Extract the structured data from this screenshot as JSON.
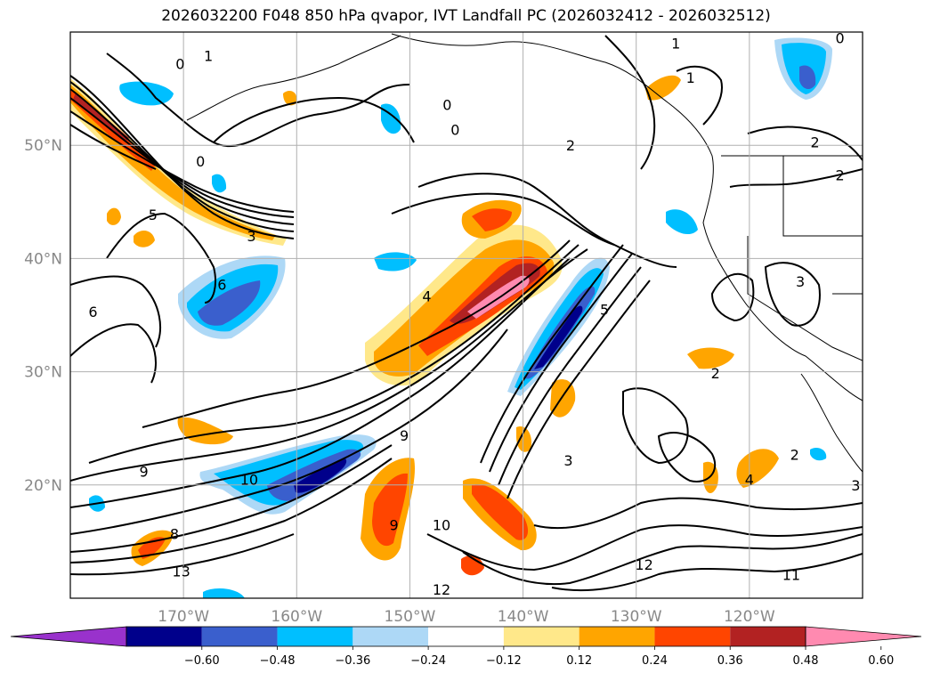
{
  "chart_data": {
    "type": "heatmap",
    "title": "2026032200 F048 850 hPa qvapor, IVT Landfall PC (2026032412 - 2026032512)",
    "projection": "lat-lon",
    "lon_range": [
      -180,
      -110
    ],
    "lat_range": [
      10,
      60
    ],
    "x_ticks": [
      "170°W",
      "160°W",
      "150°W",
      "140°W",
      "130°W",
      "120°W"
    ],
    "y_ticks": [
      "50°N",
      "40°N",
      "30°N",
      "20°N"
    ],
    "grid": true,
    "colorbar": {
      "orientation": "horizontal",
      "extend": "both",
      "levels": [
        -0.6,
        -0.48,
        -0.36,
        -0.24,
        -0.12,
        0.12,
        0.24,
        0.36,
        0.48,
        0.6
      ],
      "tick_labels": [
        "−0.60",
        "−0.48",
        "−0.36",
        "−0.24",
        "−0.12",
        "0.12",
        "0.24",
        "0.36",
        "0.48",
        "0.60"
      ],
      "colors": [
        "#9932cc",
        "#00008b",
        "#3a5fcd",
        "#00bfff",
        "#add8f6",
        "#ffffff",
        "#ffe88a",
        "#ffa500",
        "#ff4500",
        "#b22222",
        "#ff8ab0"
      ]
    },
    "contour_labels": [
      {
        "text": "0",
        "lon": -170.3,
        "lat": 57.2
      },
      {
        "text": "1",
        "lon": -167.8,
        "lat": 57.9
      },
      {
        "text": "0",
        "lon": -146.7,
        "lat": 53.6
      },
      {
        "text": "0",
        "lon": -146.0,
        "lat": 51.4
      },
      {
        "text": "2",
        "lon": -135.8,
        "lat": 50.0
      },
      {
        "text": "1",
        "lon": -126.5,
        "lat": 59.0
      },
      {
        "text": "0",
        "lon": -112.0,
        "lat": 59.5
      },
      {
        "text": "1",
        "lon": -125.2,
        "lat": 56.0
      },
      {
        "text": "2",
        "lon": -114.2,
        "lat": 50.3
      },
      {
        "text": "2",
        "lon": -112.0,
        "lat": 47.4
      },
      {
        "text": "0",
        "lon": -168.5,
        "lat": 48.6
      },
      {
        "text": "5",
        "lon": -172.7,
        "lat": 43.9
      },
      {
        "text": "3",
        "lon": -164.0,
        "lat": 42.0
      },
      {
        "text": "6",
        "lon": -166.6,
        "lat": 37.7
      },
      {
        "text": "6",
        "lon": -178.0,
        "lat": 35.3
      },
      {
        "text": "4",
        "lon": -148.5,
        "lat": 36.7
      },
      {
        "text": "5",
        "lon": -132.8,
        "lat": 35.5
      },
      {
        "text": "2",
        "lon": -123.0,
        "lat": 29.9
      },
      {
        "text": "3",
        "lon": -115.5,
        "lat": 38.0
      },
      {
        "text": "9",
        "lon": -150.5,
        "lat": 24.4
      },
      {
        "text": "9",
        "lon": -173.5,
        "lat": 21.2
      },
      {
        "text": "10",
        "lon": -164.2,
        "lat": 20.5
      },
      {
        "text": "3",
        "lon": -136.0,
        "lat": 22.2
      },
      {
        "text": "4",
        "lon": -120.0,
        "lat": 20.5
      },
      {
        "text": "2",
        "lon": -116.0,
        "lat": 22.7
      },
      {
        "text": "3",
        "lon": -110.6,
        "lat": 20.0
      },
      {
        "text": "9",
        "lon": -151.4,
        "lat": 16.5
      },
      {
        "text": "10",
        "lon": -147.2,
        "lat": 16.5
      },
      {
        "text": "8",
        "lon": -170.8,
        "lat": 15.7
      },
      {
        "text": "13",
        "lon": -170.2,
        "lat": 12.4
      },
      {
        "text": "12",
        "lon": -129.3,
        "lat": 13.0
      },
      {
        "text": "11",
        "lon": -116.3,
        "lat": 12.1
      },
      {
        "text": "12",
        "lon": -147.2,
        "lat": 10.8
      }
    ],
    "ivt_contour_levels": [
      0,
      1,
      2,
      3,
      4,
      5,
      6,
      8,
      9,
      10,
      11,
      12,
      13
    ]
  }
}
